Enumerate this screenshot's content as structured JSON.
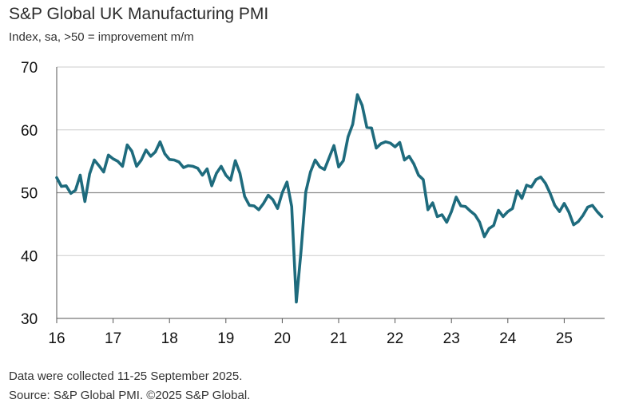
{
  "header": {
    "title": "S&P Global UK Manufacturing PMI",
    "subtitle": "Index, sa, >50 = improvement m/m"
  },
  "footer": {
    "note": "Data were collected 11-25 September 2025.",
    "source": "Source: S&P Global PMI. ©2025 S&P Global."
  },
  "colors": {
    "line": "#1e6b7d",
    "grid": "#cccccc",
    "axis": "#555555"
  },
  "chart_data": {
    "type": "line",
    "title": "S&P Global UK Manufacturing PMI",
    "subtitle": "Index, sa, >50 = improvement m/m",
    "xlabel": "",
    "ylabel": "",
    "ylim": [
      30,
      70
    ],
    "yticks": [
      30,
      40,
      50,
      60,
      70
    ],
    "xlim": [
      "2016-01",
      "2025-09"
    ],
    "xtick_labels": [
      "16",
      "17",
      "18",
      "19",
      "20",
      "21",
      "22",
      "23",
      "24",
      "25"
    ],
    "reference_line": 50,
    "grid": "horizontal",
    "legend": "none",
    "series": [
      {
        "start": "2016-01",
        "frequency": "monthly",
        "values": [
          52.4,
          51.0,
          51.1,
          49.9,
          50.4,
          52.8,
          48.6,
          53.0,
          55.2,
          54.3,
          53.3,
          56.0,
          55.4,
          55.0,
          54.2,
          57.6,
          56.6,
          54.2,
          55.2,
          56.8,
          55.8,
          56.5,
          58.1,
          56.2,
          55.3,
          55.2,
          54.9,
          54.0,
          54.3,
          54.2,
          53.9,
          52.8,
          53.8,
          51.1,
          53.1,
          54.2,
          52.8,
          52.0,
          55.1,
          53.1,
          49.4,
          48.0,
          47.9,
          47.3,
          48.3,
          49.6,
          48.9,
          47.5,
          50.0,
          51.7,
          47.8,
          32.6,
          40.7,
          50.1,
          53.3,
          55.2,
          54.1,
          53.7,
          55.6,
          57.5,
          54.1,
          55.1,
          58.9,
          60.9,
          65.6,
          63.9,
          60.4,
          60.3,
          57.1,
          57.8,
          58.1,
          57.9,
          57.3,
          58.0,
          55.2,
          55.8,
          54.6,
          52.8,
          52.1,
          47.3,
          48.4,
          46.2,
          46.5,
          45.3,
          47.0,
          49.3,
          47.9,
          47.8,
          47.1,
          46.5,
          45.3,
          43.0,
          44.3,
          44.8,
          47.2,
          46.2,
          47.0,
          47.5,
          50.3,
          49.1,
          51.2,
          50.9,
          52.1,
          52.5,
          51.5,
          49.9,
          48.0,
          47.0,
          48.3,
          46.9,
          44.9,
          45.4,
          46.4,
          47.7,
          48.0,
          47.0,
          46.2
        ]
      }
    ]
  }
}
